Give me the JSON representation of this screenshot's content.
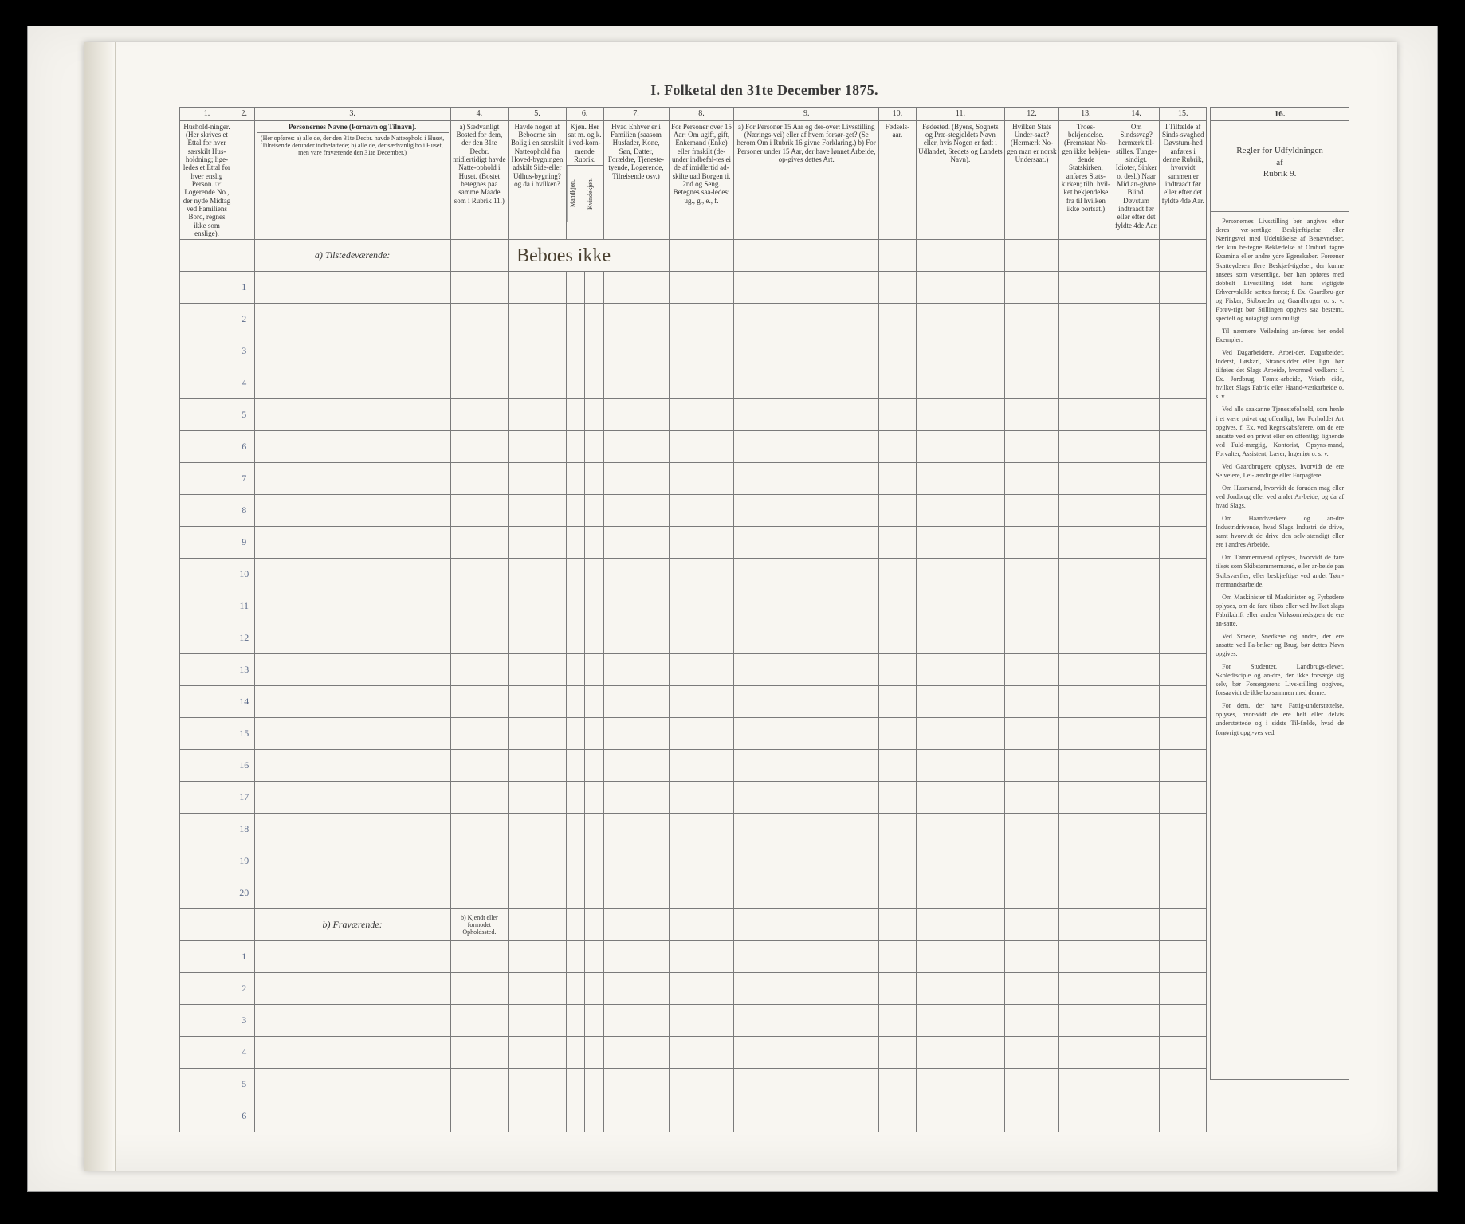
{
  "background_color": "#000000",
  "frame_bg": "#f5f3ee",
  "paper_bg": "#f8f6f1",
  "border_color": "#7a7a7a",
  "text_color": "#3a3a3a",
  "title": "I.  Folketal den 31te December 1875.",
  "columns": {
    "nums": [
      "1.",
      "2.",
      "3.",
      "4.",
      "5.",
      "6.",
      "7.",
      "8.",
      "9.",
      "10.",
      "11.",
      "12.",
      "13.",
      "14.",
      "15.",
      "16."
    ],
    "h1": "Hushold-ninger. (Her skrives et Ettal for hver særskilt Hus-holdning; lige-ledes et Ettal for hver enslig Person. ☞ Logerende No., der nyde Midtag ved Familiens Bord, regnes ikke som enslige).",
    "h3_title": "Personernes Navne (Fornavn og Tilnavn).",
    "h3_sub": "(Her opføres:\na) alle de, der den 31te Decbr. havde Natteophold i Huset, Tilreisende derunder indbefattede;\nb) alle de, der sædvanlig bo i Huset, men vare fraværende den 31te December.)",
    "h4": "a) Sædvanligt Bosted for dem, der den 31te Decbr. midlertidigt havde Natte-ophold i Huset. (Bostet betegnes paa samme Maade som i Rubrik 11.)",
    "h5": "Havde nogen af Beboerne sin Bolig i en særskilt Natteophold fra Hoved-bygningen adskilt Side-eller Udhus-bygning? og da i hvilken?",
    "h6": "Kjøn. Her sat m. og k. i ved-kom-mende Rubrik.",
    "h6a": "Mandkjøn.",
    "h6b": "Kvindekjøn.",
    "h7": "Hvad Enhver er i Familien (saasom Husfader, Kone, Søn, Datter, Forældre, Tjeneste-tyende, Logerende, Tilreisende osv.)",
    "h8": "For Personer over 15 Aar: Om ugift, gift, Enkemand (Enke) eller fraskilt (de-under indbefal-tes ei de af imidlertid ad-skilte uad Borgen ti. 2nd og Seng.\nBetegnes saa-ledes: ug., g., e., f.",
    "h9": "a) For Personer 15 Aar og der-over: Livsstilling (Nærings-vei) eller af hvem forsør-get? (Se herom Om i Rubrik 16 givne Forklaring.)\nb) For Personer under 15 Aar, der have lønnet Arbeide, op-gives dettes Art.",
    "h10": "Fødsels-aar.",
    "h11": "Fødested.\n(Byens, Sognets og Præ-stegjeldets Navn eller, hvis Nogen er født i Udlandet, Stedets og Landets Navn).",
    "h12": "Hvilken Stats Under-saat?\n(Hermærk No-gen man er norsk Undersaat.)",
    "h13": "Troes-bekjendelse.\n(Fremstaat No-gen ikke bekjen-dende Statskirken, anføres Stats-kirken; tilh. hvil-ket bekjendelse fra til hvilken ikke bortsat.)",
    "h14": "Om Sindssvag? hermærk til-stilles. Tunge-sindigt. Idioter, Sinker o. desl.)\nNaar Mid an-givne Blind. Døvstum indtraadt før eller efter det fyldte 4de Aar.",
    "h15": "I Tilfælde af Sinds-svaghed Døvstum-hed anføres i denne Rubrik, hvorvidt sammen er indtraadt før eller efter det fyldte 4de Aar."
  },
  "section_a": "a) Tilstedeværende:",
  "section_b": "b) Fraværende:",
  "h4_b": "b) Kjendt eller formodet Opholdssted.",
  "handwritten": "Beboes ikke",
  "rows_a": [
    1,
    2,
    3,
    4,
    5,
    6,
    7,
    8,
    9,
    10,
    11,
    12,
    13,
    14,
    15,
    16,
    17,
    18,
    19,
    20
  ],
  "rows_b": [
    1,
    2,
    3,
    4,
    5,
    6
  ],
  "rules": {
    "title": "Regler for Udfyldningen\naf\nRubrik 9.",
    "paras": [
      "Personernes Livsstilling bør angives efter deres væ-sentlige Beskjæftigelse eller Næringsvei med Udelukkelse af Benævnelser, der kun be-tegne Beklædelse af Ombud, tagne Examina eller andre ydre Egenskaber. Foreener Skatteyderen flere Beskjæf-tigelser, der kunne ansees som væsentlige, bør han opføres med dobbelt Livsstilling idet hans vigtigste Erhvervskilde sættes forest; f. Ex. Gaardbru-ger og Fisker; Skibsreder og Gaardbruger o. s. v. Forøv-rigt bør Stillingen opgives saa bestemt, specielt og nøiagtigt som muligt.",
      "Til nærmere Veiledning an-føres her endel Exempler:",
      "Ved Dagarbeidere, Arbei-der, Dagarbeider, Inderst, Løskarl, Strandsidder eller lign. bør tilføies det Slags Arbeide, hvormed vedkom: f. Ex. Jordbrug, Tømte-arbeide, Veiarb eide, hvilket Slags Fabrik eller Haand-værkarbeide o. s. v.",
      "Ved alle saakanne Tjenestefolhold, som henle i et være privat og offentligt, bør Forholdet Art opgives, f. Ex. ved Regnskabsførere, om de ere ansatte ved en privat eller en offentlig; lignende ved Fuld-mægtig, Kontorist, Opsyns-mand, Forvalter, Assistent, Lærer, Ingeniør o. s. v.",
      "Ved Gaardbrugere oplyses, hvorvidt de ere Selveiere, Lei-lændinge eller Forpagtere.",
      "Om Husmænd, hvorvidt de foruden mag eller ved Jordbrug eller ved andet Ar-beide, og da af hvad Slags.",
      "Om Haandværkere og an-dre Industridrivende, hvad Slags Industri de drive, samt hvorvidt de drive den selv-stændigt eller ere i andres Arbeide.",
      "Om Tømmermænd oplyses, hvorvidt de fare tilsøs som Skibstømmermænd, eller ar-beide paa Skibsværfter, eller beskjæftige ved andet Tøm-mermandsarbeide.",
      "Om Maskinister til Maskinister og Fyrbødere oplyses, om de fare tilsøs eller ved hvilket slags Fabrikdrift eller anden Virksomhedsgren de ere an-satte.",
      "Ved Smede, Snedkere og andre, der ere ansatte ved Fa-briker og Brug, bør dettes Navn opgives.",
      "For Studenter, Landbrugs-elever, Skoledisciple og an-dre, der ikke forsørge sig selv, bør Forsørgerens Livs-stilling opgives, forsaavidt de ikke bo sammen med denne.",
      "For dem, der have Fattig-understøttelse, oplyses, hvor-vidt de ere helt eller delvis understøttede og i sidste Til-fælde, hvad de forøvrigt opgi-ves ved."
    ]
  }
}
